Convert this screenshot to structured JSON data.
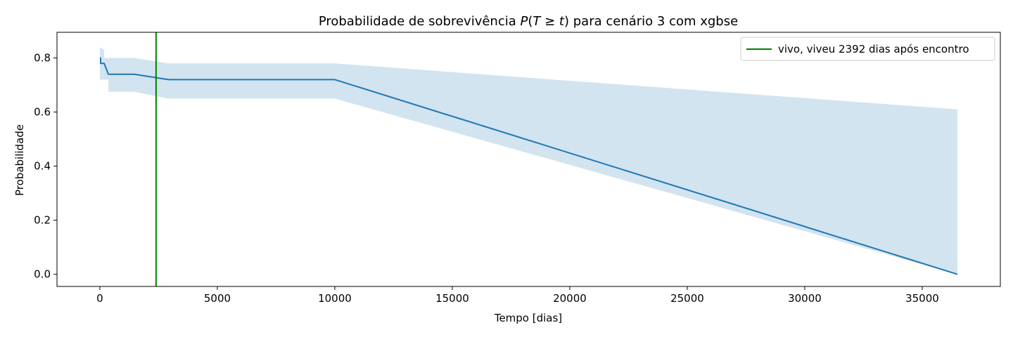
{
  "chart_data": {
    "type": "line",
    "title": {
      "prefix": "Probabilidade de sobrevivência ",
      "math_P": "P",
      "math_open": "(",
      "math_T": "T",
      "math_ge": " ≥ ",
      "math_t": "t",
      "math_close": ")",
      "suffix": " para cenário 3 com xgbse"
    },
    "xlabel": "Tempo [dias]",
    "ylabel": "Probabilidade",
    "xlim": [
      -1825,
      38325
    ],
    "ylim": [
      -0.045,
      0.895
    ],
    "xticks": [
      0,
      5000,
      10000,
      15000,
      20000,
      25000,
      30000,
      35000
    ],
    "yticks": [
      0.0,
      0.2,
      0.4,
      0.6,
      0.8
    ],
    "grid": false,
    "legend_position": "top-right",
    "series": [
      {
        "kind": "step-line",
        "color": "#1f77b4",
        "x": [
          0,
          30,
          30,
          180,
          180,
          365,
          365,
          1460,
          2920,
          10000,
          36500
        ],
        "y": [
          0.8,
          0.8,
          0.78,
          0.78,
          0.78,
          0.74,
          0.74,
          0.74,
          0.72,
          0.72,
          0.0
        ]
      }
    ],
    "confidence_band": {
      "color": "#1f77b4",
      "opacity": 0.2,
      "x": [
        0,
        180,
        180,
        365,
        365,
        1460,
        2920,
        10000,
        36500
      ],
      "upper": [
        0.84,
        0.83,
        0.8,
        0.8,
        0.8,
        0.8,
        0.78,
        0.78,
        0.61
      ],
      "lower": [
        0.72,
        0.72,
        0.72,
        0.72,
        0.675,
        0.675,
        0.65,
        0.65,
        0.0
      ]
    },
    "vertical_lines": [
      {
        "x": 2392,
        "color": "#008000",
        "label": "vivo, viveu 2392 dias após encontro"
      }
    ]
  }
}
